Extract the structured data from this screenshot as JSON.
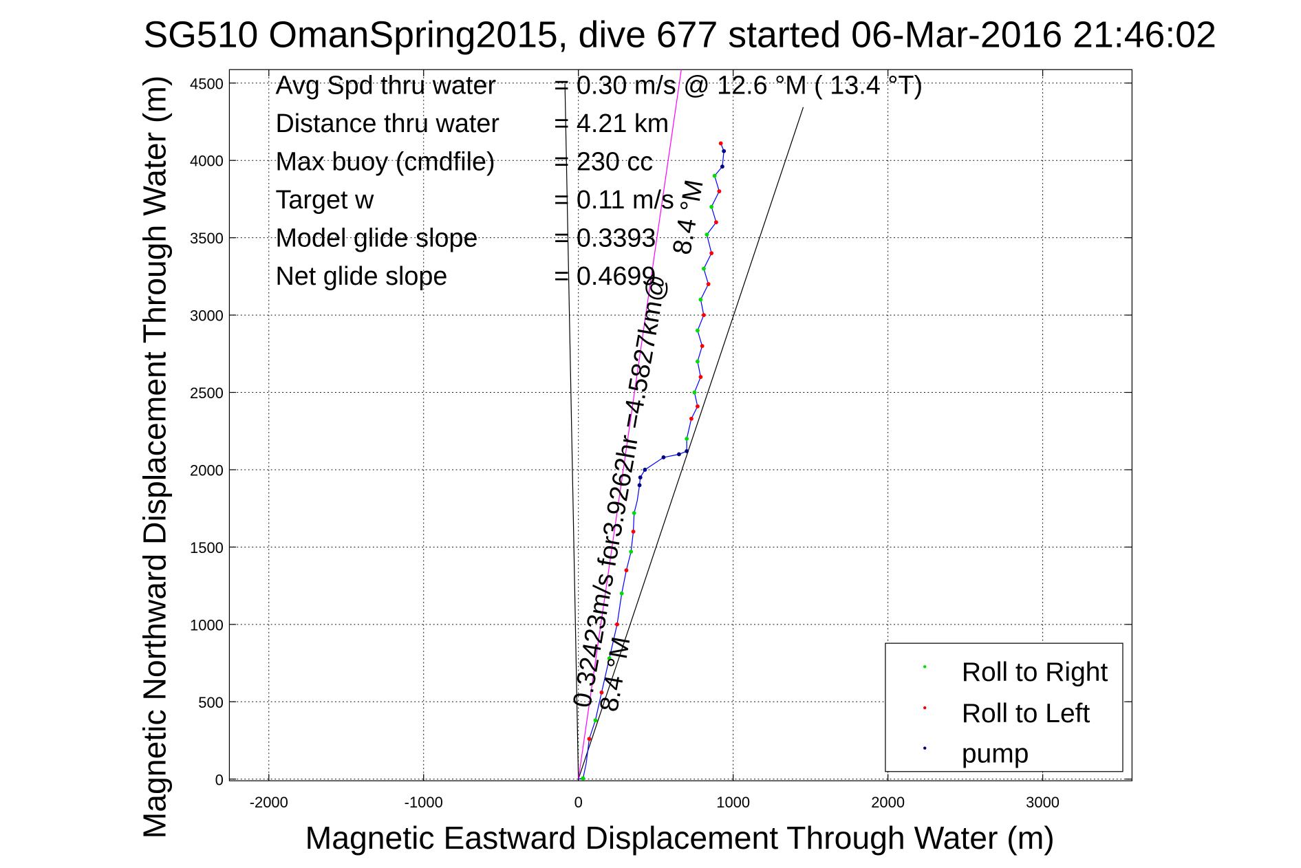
{
  "chart_data": {
    "type": "line",
    "title": "SG510 OmanSpring2015, dive 677 started 06-Mar-2016 21:46:02",
    "xlabel": "Magnetic Eastward Displacement Through Water (m)",
    "ylabel": "Magnetic Northward Displacement Through Water (m)",
    "xlim": [
      -2255,
      3577
    ],
    "ylim": [
      -11,
      4587
    ],
    "xticks": [
      -2000,
      -1000,
      0,
      1000,
      2000,
      3000
    ],
    "yticks": [
      0,
      500,
      1000,
      1500,
      2000,
      2500,
      3000,
      3500,
      4000,
      4500
    ],
    "grid": true,
    "info": [
      {
        "label": "Avg Spd thru water",
        "value": "=  0.30 m/s @  12.6 °M ( 13.4 °T)"
      },
      {
        "label": "Distance thru water",
        "value": "=  4.21 km"
      },
      {
        "label": "Max buoy (cmdfile)",
        "value": "= 230 cc"
      },
      {
        "label": "Target w",
        "value": "= 0.11 m/s"
      },
      {
        "label": "Model glide slope",
        "value": "= 0.3393"
      },
      {
        "label": "Net glide slope",
        "value": "= 0.4699"
      }
    ],
    "annotations": {
      "current": "0.32423m/s for3.9262hr =4.5827km@",
      "heading_low": "8.4 °M",
      "heading_high": "8.4 °M"
    },
    "legend": {
      "placement": "bottom-right",
      "entries": [
        {
          "label": "Roll to Right",
          "color": "#00dd00"
        },
        {
          "label": "Roll to Left",
          "color": "#ff0000"
        },
        {
          "label": "pump",
          "color": "#000080"
        }
      ]
    },
    "track": {
      "color": "#0000ff",
      "x": [
        0,
        30,
        50,
        70,
        110,
        150,
        200,
        250,
        280,
        310,
        340,
        355,
        360,
        380,
        395,
        400,
        430,
        550,
        650,
        700,
        700,
        730,
        770,
        750,
        790,
        770,
        800,
        770,
        810,
        790,
        840,
        810,
        860,
        830,
        890,
        860,
        910,
        880,
        930,
        940,
        920
      ],
      "y": [
        0,
        5,
        100,
        260,
        380,
        560,
        780,
        1000,
        1200,
        1350,
        1470,
        1600,
        1720,
        1800,
        1900,
        1950,
        2000,
        2080,
        2100,
        2120,
        2200,
        2330,
        2410,
        2500,
        2600,
        2700,
        2800,
        2900,
        3000,
        3100,
        3200,
        3300,
        3400,
        3520,
        3600,
        3700,
        3800,
        3900,
        3960,
        4060,
        4110
      ]
    },
    "markers": {
      "roll_right": {
        "x": [
          30,
          110,
          200,
          280,
          340,
          360,
          700,
          750,
          770,
          770,
          790,
          810,
          830,
          860,
          880
        ],
        "y": [
          5,
          380,
          780,
          1200,
          1470,
          1720,
          2200,
          2500,
          2700,
          2900,
          3100,
          3300,
          3520,
          3700,
          3900
        ]
      },
      "roll_left": {
        "x": [
          70,
          150,
          250,
          310,
          355,
          730,
          770,
          790,
          800,
          810,
          840,
          860,
          890,
          910,
          920
        ],
        "y": [
          260,
          560,
          1000,
          1350,
          1600,
          2330,
          2410,
          2600,
          2800,
          3000,
          3200,
          3400,
          3600,
          3800,
          4110
        ]
      },
      "pump": {
        "x": [
          395,
          400,
          430,
          550,
          650,
          700,
          930,
          940
        ],
        "y": [
          1900,
          1950,
          2000,
          2080,
          2100,
          2120,
          3960,
          4060
        ]
      }
    },
    "lines": {
      "current_line": {
        "color": "#ff00ff",
        "x": [
          0,
          665
        ],
        "y": [
          0,
          4587
        ]
      },
      "heading_line": {
        "x": [
          0,
          1453
        ],
        "y": [
          0,
          4344
        ]
      },
      "vertical_line": {
        "x": [
          0,
          -87
        ],
        "y": [
          0,
          4496
        ]
      }
    }
  }
}
